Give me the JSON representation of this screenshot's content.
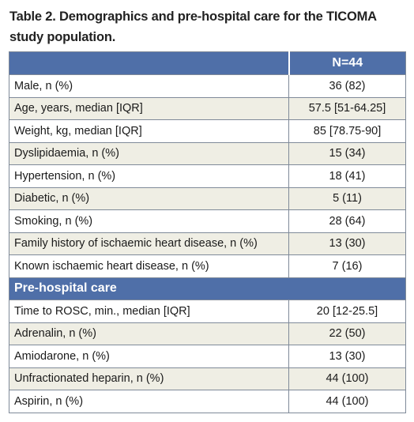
{
  "caption": "Table 2. Demographics and pre-hospital care for the TICOMA study population.",
  "header": {
    "label": "",
    "value": "N=44"
  },
  "rows": [
    {
      "label": "Male, n (%)",
      "value": "36 (82)"
    },
    {
      "label": "Age, years, median [IQR]",
      "value": "57.5 [51-64.25]"
    },
    {
      "label": "Weight, kg, median [IQR]",
      "value": "85 [78.75-90]"
    },
    {
      "label": "Dyslipidaemia, n (%)",
      "value": "15 (34)"
    },
    {
      "label": "Hypertension, n (%)",
      "value": "18 (41)"
    },
    {
      "label": "Diabetic, n (%)",
      "value": "5 (11)"
    },
    {
      "label": "Smoking, n (%)",
      "value": "28 (64)"
    },
    {
      "label": "Family history of ischaemic heart disease, n (%)",
      "value": "13 (30)"
    },
    {
      "label": "Known ischaemic heart disease, n (%)",
      "value": "7 (16)"
    }
  ],
  "section": {
    "title": "Pre-hospital care"
  },
  "rows2": [
    {
      "label": "Time to ROSC, min., median [IQR]",
      "value": "20 [12-25.5]"
    },
    {
      "label": "Adrenalin, n (%)",
      "value": "22 (50)"
    },
    {
      "label": "Amiodarone, n (%)",
      "value": "13 (30)"
    },
    {
      "label": "Unfractionated heparin, n (%)",
      "value": "44 (100)"
    },
    {
      "label": "Aspirin, n (%)",
      "value": "44 (100)"
    }
  ]
}
